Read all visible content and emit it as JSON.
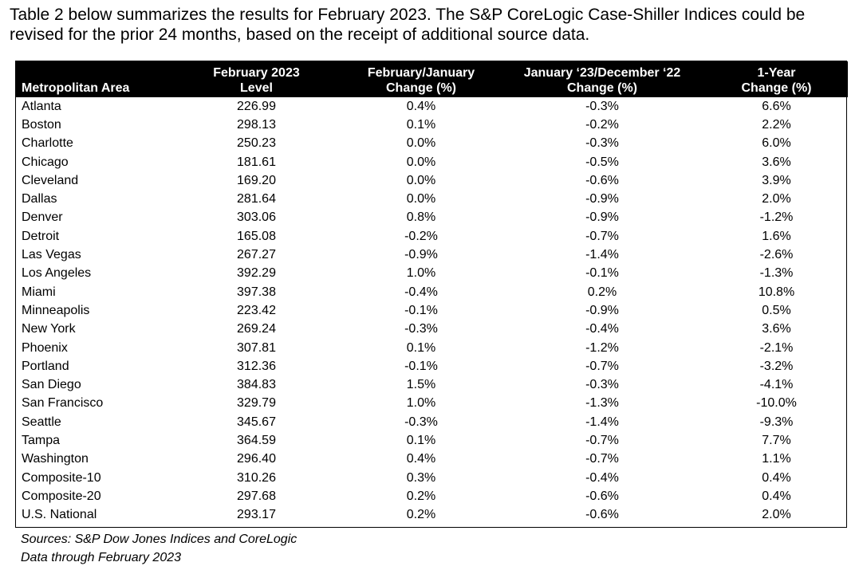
{
  "intro_text": "Table 2 below summarizes the results for February 2023. The S&P CoreLogic Case-Shiller Indices could be revised for the prior 24 months, based on the receipt of additional source data.",
  "table": {
    "headers": {
      "area": "Metropolitan Area",
      "level_line1": "February 2023",
      "level_line2": "Level",
      "feb_jan_line1": "February/January",
      "feb_jan_line2": "Change (%)",
      "jan_dec_line1": "January ‘23/December ‘22",
      "jan_dec_line2": "Change (%)",
      "year_line1": "1-Year",
      "year_line2": "Change (%)"
    },
    "rows": [
      {
        "area": "Atlanta",
        "level": "226.99",
        "feb_jan": "0.4%",
        "jan_dec": "-0.3%",
        "year": "6.6%"
      },
      {
        "area": "Boston",
        "level": "298.13",
        "feb_jan": "0.1%",
        "jan_dec": "-0.2%",
        "year": "2.2%"
      },
      {
        "area": "Charlotte",
        "level": "250.23",
        "feb_jan": "0.0%",
        "jan_dec": "-0.3%",
        "year": "6.0%"
      },
      {
        "area": "Chicago",
        "level": "181.61",
        "feb_jan": "0.0%",
        "jan_dec": "-0.5%",
        "year": "3.6%"
      },
      {
        "area": "Cleveland",
        "level": "169.20",
        "feb_jan": "0.0%",
        "jan_dec": "-0.6%",
        "year": "3.9%"
      },
      {
        "area": "Dallas",
        "level": "281.64",
        "feb_jan": "0.0%",
        "jan_dec": "-0.9%",
        "year": "2.0%"
      },
      {
        "area": "Denver",
        "level": "303.06",
        "feb_jan": "0.8%",
        "jan_dec": "-0.9%",
        "year": "-1.2%"
      },
      {
        "area": "Detroit",
        "level": "165.08",
        "feb_jan": "-0.2%",
        "jan_dec": "-0.7%",
        "year": "1.6%"
      },
      {
        "area": "Las Vegas",
        "level": "267.27",
        "feb_jan": "-0.9%",
        "jan_dec": "-1.4%",
        "year": "-2.6%"
      },
      {
        "area": "Los Angeles",
        "level": "392.29",
        "feb_jan": "1.0%",
        "jan_dec": "-0.1%",
        "year": "-1.3%"
      },
      {
        "area": "Miami",
        "level": "397.38",
        "feb_jan": "-0.4%",
        "jan_dec": "0.2%",
        "year": "10.8%"
      },
      {
        "area": "Minneapolis",
        "level": "223.42",
        "feb_jan": "-0.1%",
        "jan_dec": "-0.9%",
        "year": "0.5%"
      },
      {
        "area": "New York",
        "level": "269.24",
        "feb_jan": "-0.3%",
        "jan_dec": "-0.4%",
        "year": "3.6%"
      },
      {
        "area": "Phoenix",
        "level": "307.81",
        "feb_jan": "0.1%",
        "jan_dec": "-1.2%",
        "year": "-2.1%"
      },
      {
        "area": "Portland",
        "level": "312.36",
        "feb_jan": "-0.1%",
        "jan_dec": "-0.7%",
        "year": "-3.2%"
      },
      {
        "area": "San Diego",
        "level": "384.83",
        "feb_jan": "1.5%",
        "jan_dec": "-0.3%",
        "year": "-4.1%"
      },
      {
        "area": "San Francisco",
        "level": "329.79",
        "feb_jan": "1.0%",
        "jan_dec": "-1.3%",
        "year": "-10.0%"
      },
      {
        "area": "Seattle",
        "level": "345.67",
        "feb_jan": "-0.3%",
        "jan_dec": "-1.4%",
        "year": "-9.3%"
      },
      {
        "area": "Tampa",
        "level": "364.59",
        "feb_jan": "0.1%",
        "jan_dec": "-0.7%",
        "year": "7.7%"
      },
      {
        "area": "Washington",
        "level": "296.40",
        "feb_jan": "0.4%",
        "jan_dec": "-0.7%",
        "year": "1.1%"
      },
      {
        "area": "Composite-10",
        "level": "310.26",
        "feb_jan": "0.3%",
        "jan_dec": "-0.4%",
        "year": "0.4%"
      },
      {
        "area": "Composite-20",
        "level": "297.68",
        "feb_jan": "0.2%",
        "jan_dec": "-0.6%",
        "year": "0.4%"
      },
      {
        "area": "U.S. National",
        "level": "293.17",
        "feb_jan": "0.2%",
        "jan_dec": "-0.6%",
        "year": "2.0%"
      }
    ]
  },
  "footer": {
    "sources": "Sources: S&P Dow Jones Indices and CoreLogic",
    "data_through": "Data through February 2023"
  }
}
